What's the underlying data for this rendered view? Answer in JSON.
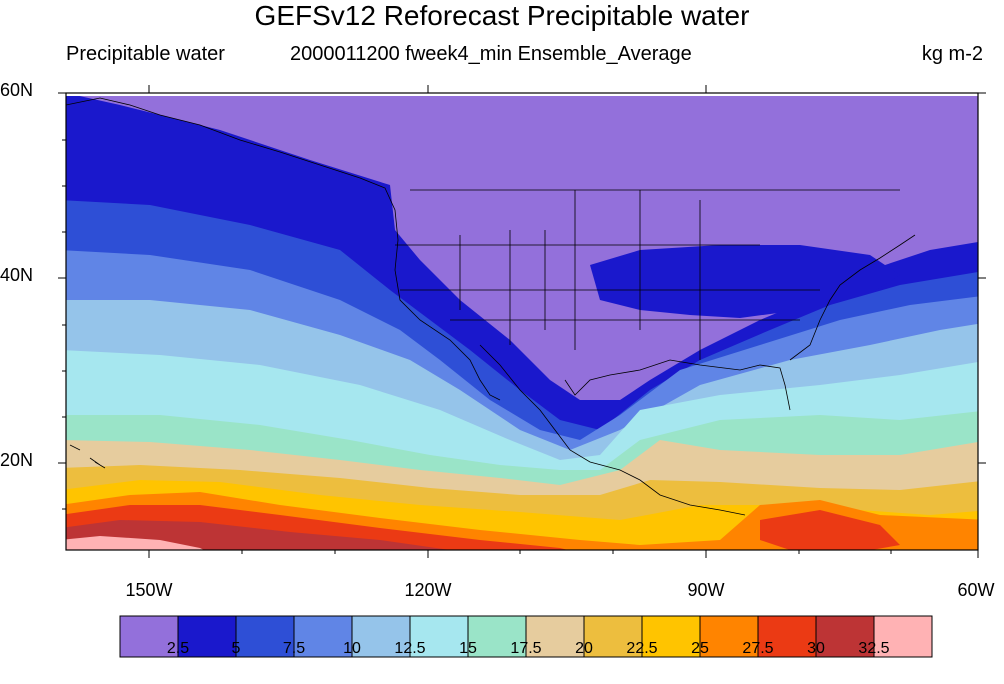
{
  "figure": {
    "title": "GEFSv12 Reforecast Precipitable water",
    "subtitle_left": "Precipitable water",
    "subtitle_center": "2000011200 fweek4_min Ensemble_Average",
    "subtitle_right": "kg m-2"
  },
  "axes": {
    "lat_ticks": [
      {
        "label": "60N",
        "value": 60
      },
      {
        "label": "40N",
        "value": 40
      },
      {
        "label": "20N",
        "value": 20
      }
    ],
    "lon_ticks": [
      {
        "label": "150W",
        "value": -150
      },
      {
        "label": "120W",
        "value": -120
      },
      {
        "label": "90W",
        "value": -90
      },
      {
        "label": "60W",
        "value": -60
      }
    ],
    "lat_range": [
      10,
      60
    ],
    "lon_range": [
      -160,
      -60
    ]
  },
  "colorbar": {
    "colors": [
      "#9370DB",
      "#1A18CC",
      "#2E4FD6",
      "#6085E6",
      "#95C4EA",
      "#A6E7EF",
      "#9AE4C8",
      "#E6CC9E",
      "#EDBE3E",
      "#FFC400",
      "#FF8400",
      "#EB3A14",
      "#BD3435",
      "#FFB2B4"
    ],
    "labels": [
      "2.5",
      "5",
      "7.5",
      "10",
      "12.5",
      "15",
      "17.5",
      "20",
      "22.5",
      "25",
      "27.5",
      "30",
      "32.5"
    ]
  }
}
